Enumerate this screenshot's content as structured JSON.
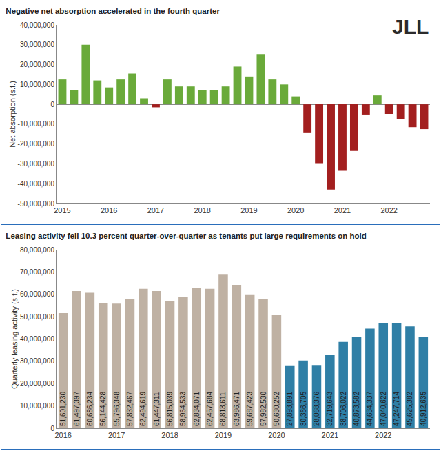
{
  "chart_data": [
    {
      "type": "bar",
      "title": "Negative net absorption accelerated in the fourth quarter",
      "y_label": "Net absorption (s.f.)",
      "annotations": [
        "JLL"
      ],
      "categories": [
        "2015",
        null,
        null,
        null,
        "2016",
        null,
        null,
        null,
        "2017",
        null,
        null,
        null,
        "2018",
        null,
        null,
        null,
        "2019",
        null,
        null,
        null,
        "2020",
        null,
        null,
        null,
        "2021",
        null,
        null,
        null,
        "2022",
        null,
        null,
        null
      ],
      "values": [
        12500000,
        7000000,
        30000000,
        12000000,
        8500000,
        12500000,
        15500000,
        3000000,
        -1500000,
        12500000,
        9000000,
        9000000,
        7000000,
        7000000,
        9000000,
        19000000,
        14000000,
        25000000,
        12500000,
        10000000,
        4000000,
        -14500000,
        -30000000,
        -43000000,
        -33500000,
        -23500000,
        -5500000,
        4500000,
        -5000000,
        -7500000,
        -11500000,
        -12500000
      ],
      "colors": [
        "#6aaa3a",
        "#6aaa3a",
        "#6aaa3a",
        "#6aaa3a",
        "#6aaa3a",
        "#6aaa3a",
        "#6aaa3a",
        "#6aaa3a",
        "#a31f1f",
        "#6aaa3a",
        "#6aaa3a",
        "#6aaa3a",
        "#6aaa3a",
        "#6aaa3a",
        "#6aaa3a",
        "#6aaa3a",
        "#6aaa3a",
        "#6aaa3a",
        "#6aaa3a",
        "#6aaa3a",
        "#6aaa3a",
        "#a31f1f",
        "#a31f1f",
        "#a31f1f",
        "#a31f1f",
        "#a31f1f",
        "#a31f1f",
        "#6aaa3a",
        "#a31f1f",
        "#a31f1f",
        "#a31f1f",
        "#a31f1f"
      ],
      "ylim": [
        -50000000,
        40000000
      ],
      "yticks": [
        {
          "value": -50000000,
          "label": "-50,000,000"
        },
        {
          "value": -40000000,
          "label": "-40,000,000"
        },
        {
          "value": -30000000,
          "label": "-30,000,000"
        },
        {
          "value": -20000000,
          "label": "-20,000,000"
        },
        {
          "value": -10000000,
          "label": "-10,000,000"
        },
        0,
        {
          "value": 10000000,
          "label": "10,000,000"
        },
        {
          "value": 20000000,
          "label": "20,000,000"
        },
        {
          "value": 30000000,
          "label": "30,000,000"
        },
        {
          "value": 40000000,
          "label": "40,000,000"
        }
      ],
      "grid": false,
      "data_labels": false
    },
    {
      "type": "bar",
      "title": "Leasing activity fell 10.3 percent quarter-over-quarter as tenants put large requirements on hold",
      "y_label": "Quarterly leasing activity (s.f.)",
      "categories": [
        "2016",
        null,
        null,
        null,
        "2017",
        null,
        null,
        null,
        "2018",
        null,
        null,
        null,
        "2019",
        null,
        null,
        null,
        "2020",
        null,
        null,
        null,
        "2021",
        null,
        null,
        null,
        "2022",
        null,
        null,
        null
      ],
      "values": [
        51601230,
        61497397,
        60686234,
        56144428,
        55796348,
        57832467,
        62494619,
        61447311,
        56815039,
        58964533,
        62834071,
        62457684,
        68813611,
        63986471,
        59687423,
        57982530,
        50630252,
        27893891,
        30366705,
        28068376,
        32719643,
        38706022,
        40873582,
        44634337,
        47040622,
        47247714,
        45625382,
        40912635
      ],
      "value_labels": [
        "51,601,230",
        "61,497,397",
        "60,686,234",
        "56,144,428",
        "55,796,348",
        "57,832,467",
        "62,494,619",
        "61,447,311",
        "56,815,039",
        "58,964,533",
        "62,834,071",
        "62,457,684",
        "68,813,611",
        "63,986,471",
        "59,687,423",
        "57,982,530",
        "50,630,252",
        "27,893,891",
        "30,366,705",
        "28,068,376",
        "32,719,643",
        "38,706,022",
        "40,873,582",
        "44,634,337",
        "47,040,622",
        "47,247,714",
        "45,625,382",
        "40,912,635"
      ],
      "colors": [
        "#bfb1a3",
        "#bfb1a3",
        "#bfb1a3",
        "#bfb1a3",
        "#bfb1a3",
        "#bfb1a3",
        "#bfb1a3",
        "#bfb1a3",
        "#bfb1a3",
        "#bfb1a3",
        "#bfb1a3",
        "#bfb1a3",
        "#bfb1a3",
        "#bfb1a3",
        "#bfb1a3",
        "#bfb1a3",
        "#bfb1a3",
        "#2f7fa6",
        "#2f7fa6",
        "#2f7fa6",
        "#2f7fa6",
        "#2f7fa6",
        "#2f7fa6",
        "#2f7fa6",
        "#2f7fa6",
        "#2f7fa6",
        "#2f7fa6",
        "#2f7fa6"
      ],
      "ylim": [
        0,
        80000000
      ],
      "yticks": [
        0,
        {
          "value": 10000000,
          "label": "10,000,000"
        },
        {
          "value": 20000000,
          "label": "20,000,000"
        },
        {
          "value": 30000000,
          "label": "30,000,000"
        },
        {
          "value": 40000000,
          "label": "40,000,000"
        },
        {
          "value": 50000000,
          "label": "50,000,000"
        },
        {
          "value": 60000000,
          "label": "60,000,000"
        },
        {
          "value": 70000000,
          "label": "70,000,000"
        },
        {
          "value": 80000000,
          "label": "80,000,000"
        }
      ],
      "grid": false,
      "data_labels": true
    }
  ]
}
